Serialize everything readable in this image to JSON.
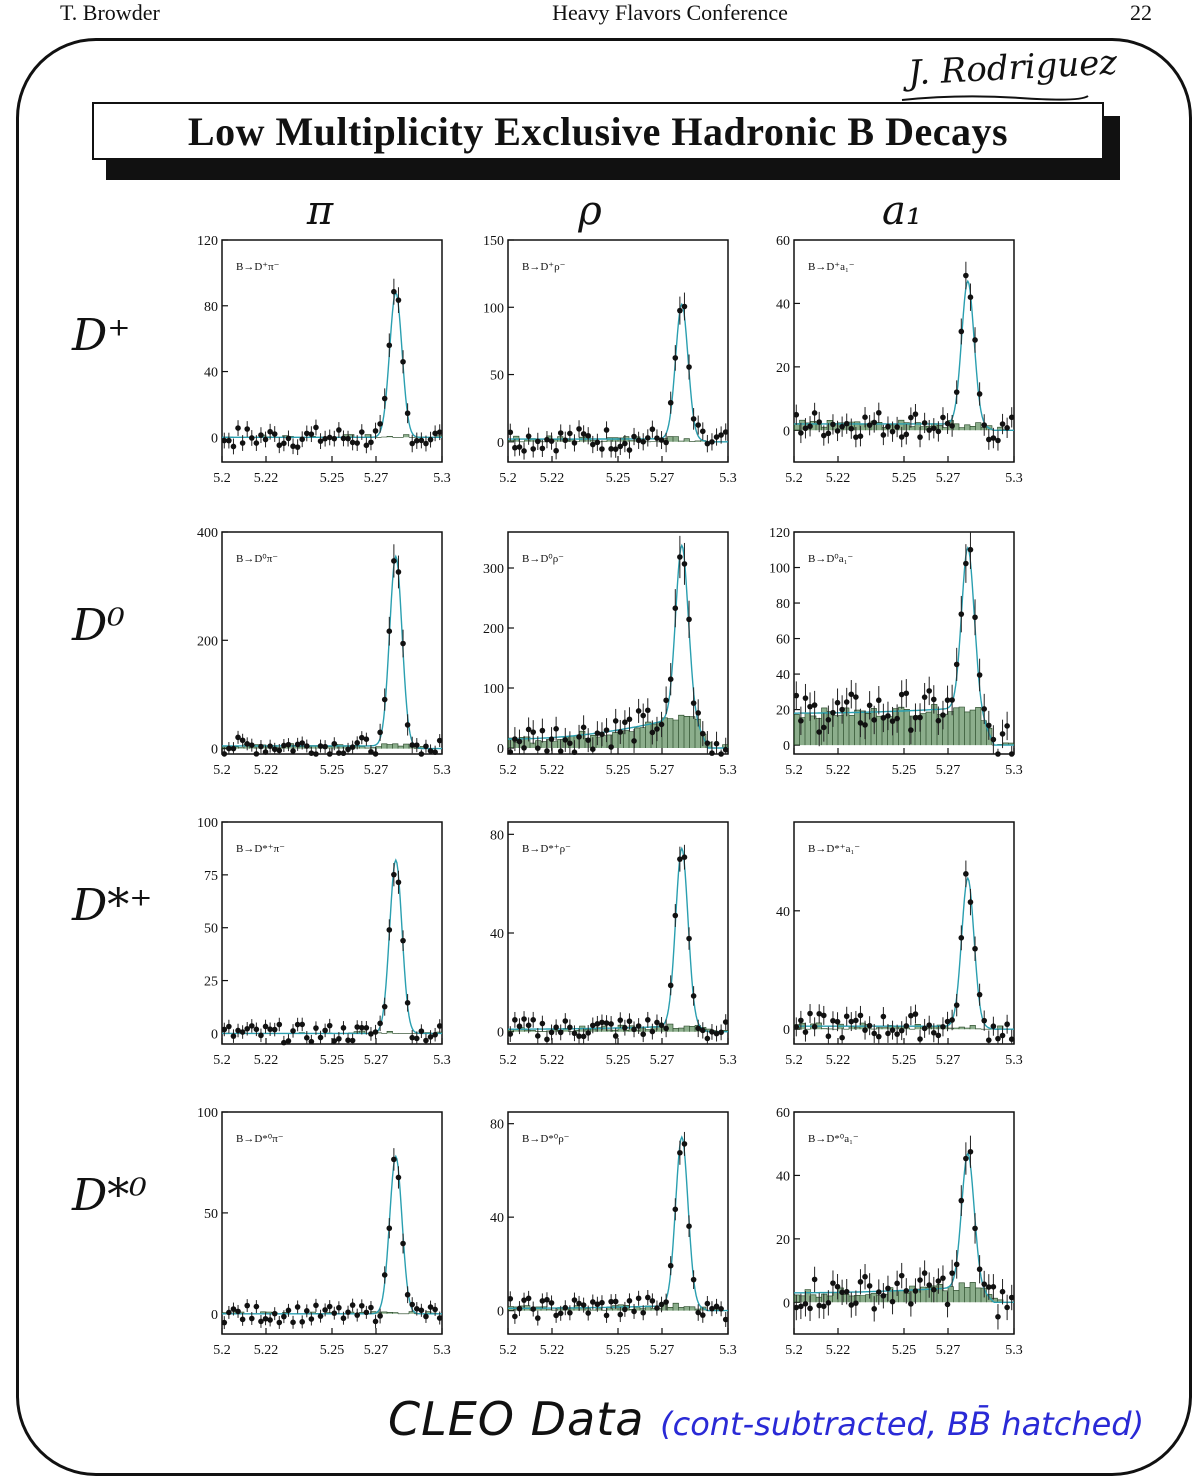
{
  "header": {
    "left": "T. Browder",
    "center": "Heavy Flavors Conference",
    "right": "22"
  },
  "signature": "J. Rodriguez",
  "title": "Low Multiplicity Exclusive Hadronic B Decays",
  "column_labels": [
    "π",
    "ρ",
    "a₁"
  ],
  "row_labels": [
    "D⁺",
    "D⁰",
    "D*⁺",
    "D*⁰"
  ],
  "footer": {
    "main": "CLEO Data",
    "sub": "(cont-subtracted, BB̄ hatched)"
  },
  "colors": {
    "ink": "#111111",
    "hatch": "#2e6b2e",
    "fit": "#2a9fb0",
    "note": "#2a2ad6"
  },
  "chart_data": [
    {
      "type": "scatter",
      "label": "B→D⁺π⁻",
      "row": 0,
      "col": 0,
      "ylim": [
        -15,
        120
      ],
      "yticks": [
        0,
        40,
        80,
        120
      ],
      "xticks": [
        "5.2",
        "5.22",
        "5.25",
        "5.27",
        "5.3"
      ],
      "xlim": [
        5.2,
        5.3
      ],
      "peak": 88,
      "bkg": 0,
      "band": 6,
      "trend": 0
    },
    {
      "type": "scatter",
      "label": "B→D⁺ρ⁻",
      "row": 0,
      "col": 1,
      "ylim": [
        -15,
        150
      ],
      "yticks": [
        0,
        50,
        100,
        150
      ],
      "xticks": [
        "5.2",
        "5.22",
        "5.25",
        "5.27",
        "5.3"
      ],
      "xlim": [
        5.2,
        5.3
      ],
      "peak": 100,
      "bkg": 2,
      "band": 8,
      "trend": 0.5
    },
    {
      "type": "scatter",
      "label": "B→D⁺a₁⁻",
      "row": 0,
      "col": 2,
      "ylim": [
        -10,
        60
      ],
      "yticks": [
        0,
        20,
        40,
        60
      ],
      "xticks": [
        "5.2",
        "5.22",
        "5.25",
        "5.27",
        "5.3"
      ],
      "xlim": [
        5.2,
        5.3
      ],
      "peak": 45,
      "bkg": 2,
      "band": 4,
      "trend": 0
    },
    {
      "type": "scatter",
      "label": "B→D⁰π⁻",
      "row": 1,
      "col": 0,
      "ylim": [
        -10,
        400
      ],
      "yticks": [
        0,
        200,
        400
      ],
      "xticks": [
        "5.2",
        "5.22",
        "5.25",
        "5.27",
        "5.3"
      ],
      "xlim": [
        5.2,
        5.3
      ],
      "peak": 350,
      "bkg": 5,
      "band": 15,
      "trend": 0
    },
    {
      "type": "scatter",
      "label": "B→D⁰ρ⁻",
      "row": 1,
      "col": 1,
      "ylim": [
        -10,
        360
      ],
      "yticks": [
        0,
        100,
        200,
        300
      ],
      "xticks": [
        "5.2",
        "5.22",
        "5.25",
        "5.27",
        "5.3"
      ],
      "xlim": [
        5.2,
        5.3
      ],
      "peak": 285,
      "bkg": 15,
      "band": 25,
      "trend": 60
    },
    {
      "type": "scatter",
      "label": "B→D⁰a₁⁻",
      "row": 1,
      "col": 2,
      "ylim": [
        -5,
        120
      ],
      "yticks": [
        0,
        20,
        40,
        60,
        80,
        100,
        120
      ],
      "xticks": [
        "5.2",
        "5.22",
        "5.25",
        "5.27",
        "5.3"
      ],
      "xlim": [
        5.2,
        5.3
      ],
      "peak": 90,
      "bkg": 18,
      "band": 10,
      "trend": 5
    },
    {
      "type": "scatter",
      "label": "B→D*⁺π⁻",
      "row": 2,
      "col": 0,
      "ylim": [
        -5,
        100
      ],
      "yticks": [
        0,
        25,
        50,
        75,
        100
      ],
      "xticks": [
        "5.2",
        "5.22",
        "5.25",
        "5.27",
        "5.3"
      ],
      "xlim": [
        5.2,
        5.3
      ],
      "peak": 82,
      "bkg": 0,
      "band": 4,
      "trend": 0
    },
    {
      "type": "scatter",
      "label": "B→D*⁺ρ⁻",
      "row": 2,
      "col": 1,
      "ylim": [
        -5,
        85
      ],
      "yticks": [
        0,
        40,
        80
      ],
      "xticks": [
        "5.2",
        "5.22",
        "5.25",
        "5.27",
        "5.3"
      ],
      "xlim": [
        5.2,
        5.3
      ],
      "peak": 72,
      "bkg": 1,
      "band": 4,
      "trend": 2
    },
    {
      "type": "scatter",
      "label": "B→D*⁺a₁⁻",
      "row": 2,
      "col": 2,
      "ylim": [
        -5,
        70
      ],
      "yticks": [
        0,
        40
      ],
      "xticks": [
        "5.2",
        "5.22",
        "5.25",
        "5.27",
        "5.3"
      ],
      "xlim": [
        5.2,
        5.3
      ],
      "peak": 50,
      "bkg": 1,
      "band": 4,
      "trend": 0
    },
    {
      "type": "scatter",
      "label": "B→D*⁰π⁻",
      "row": 3,
      "col": 0,
      "ylim": [
        -10,
        100
      ],
      "yticks": [
        0,
        50,
        100
      ],
      "xticks": [
        "5.2",
        "5.22",
        "5.25",
        "5.27",
        "5.3"
      ],
      "xlim": [
        5.2,
        5.3
      ],
      "peak": 78,
      "bkg": 0,
      "band": 4,
      "trend": 0
    },
    {
      "type": "scatter",
      "label": "B→D*⁰ρ⁻",
      "row": 3,
      "col": 1,
      "ylim": [
        -10,
        85
      ],
      "yticks": [
        0,
        40,
        80
      ],
      "xticks": [
        "5.2",
        "5.22",
        "5.25",
        "5.27",
        "5.3"
      ],
      "xlim": [
        5.2,
        5.3
      ],
      "peak": 72,
      "bkg": 1,
      "band": 4,
      "trend": 2
    },
    {
      "type": "scatter",
      "label": "B→D*⁰a₁⁻",
      "row": 3,
      "col": 2,
      "ylim": [
        -10,
        60
      ],
      "yticks": [
        0,
        20,
        40,
        60
      ],
      "xticks": [
        "5.2",
        "5.22",
        "5.25",
        "5.27",
        "5.3"
      ],
      "xlim": [
        5.2,
        5.3
      ],
      "peak": 42,
      "bkg": 3,
      "band": 5,
      "trend": 3
    }
  ]
}
